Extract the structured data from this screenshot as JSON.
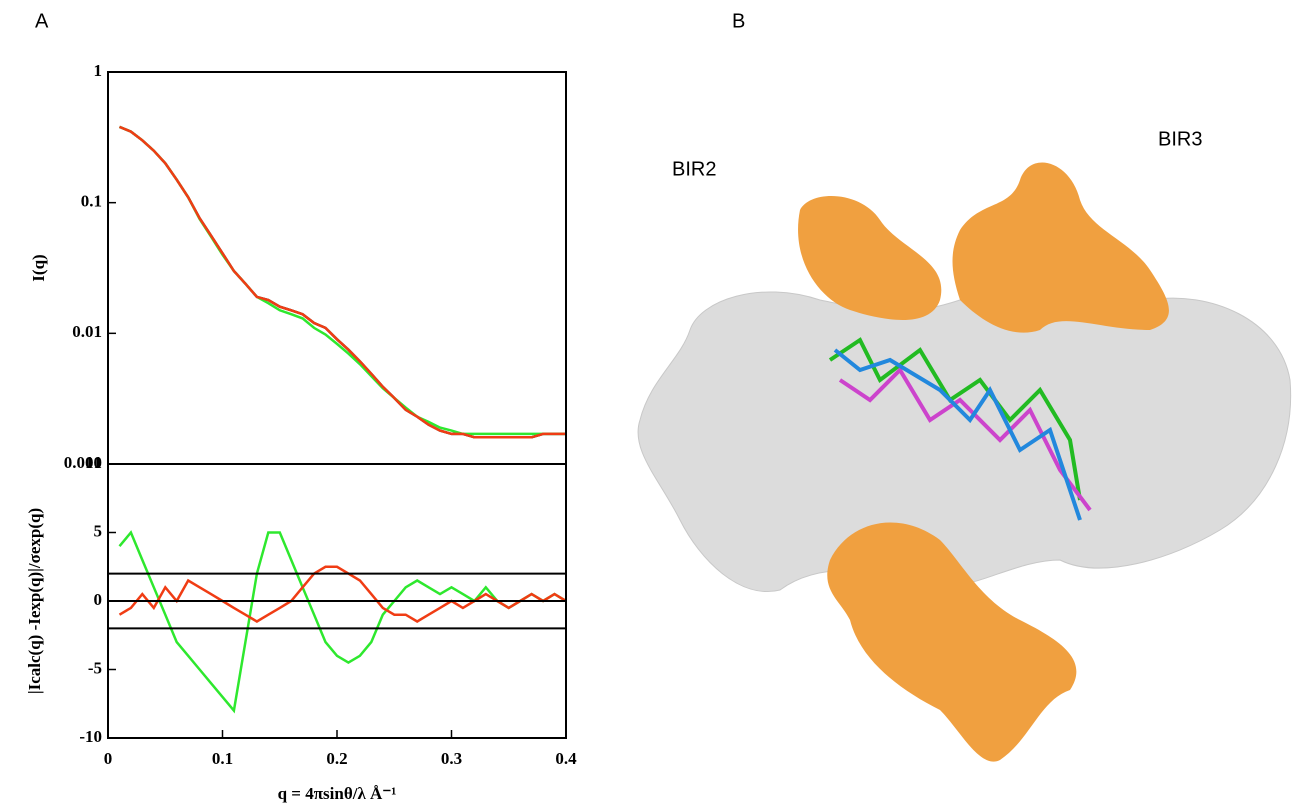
{
  "panel_labels": [
    "A",
    "B"
  ],
  "image_labels": [
    "BIR2",
    "BIR3"
  ],
  "chart_data": [
    {
      "type": "line",
      "log_y": true,
      "ylabel": "I(q)",
      "xlim": [
        0,
        0.4
      ],
      "ylim": [
        0.001,
        1
      ],
      "yticks": [
        0.001,
        0.01,
        0.1,
        1
      ],
      "x": [
        0.01,
        0.02,
        0.03,
        0.04,
        0.05,
        0.06,
        0.07,
        0.08,
        0.09,
        0.1,
        0.11,
        0.12,
        0.13,
        0.14,
        0.15,
        0.16,
        0.17,
        0.18,
        0.19,
        0.2,
        0.21,
        0.22,
        0.23,
        0.24,
        0.25,
        0.26,
        0.27,
        0.28,
        0.29,
        0.3,
        0.31,
        0.32,
        0.33,
        0.34,
        0.35,
        0.36,
        0.37,
        0.38,
        0.39,
        0.4
      ],
      "series": [
        {
          "color": "#000000",
          "values": [
            0.38,
            0.35,
            0.3,
            0.25,
            0.2,
            0.15,
            0.11,
            0.076,
            0.056,
            0.041,
            0.03,
            0.024,
            0.019,
            0.018,
            0.016,
            0.015,
            0.014,
            0.012,
            0.011,
            0.009,
            0.0075,
            0.0061,
            0.0049,
            0.0039,
            0.0032,
            0.0026,
            0.0023,
            0.002,
            0.0018,
            0.0017,
            0.0017,
            0.0016,
            0.0016,
            0.0016,
            0.0016,
            0.0016,
            0.0016,
            0.0017,
            0.0017,
            0.0017
          ]
        },
        {
          "color": "#2ee82e",
          "values": [
            0.38,
            0.35,
            0.3,
            0.25,
            0.2,
            0.15,
            0.11,
            0.075,
            0.055,
            0.04,
            0.03,
            0.024,
            0.019,
            0.017,
            0.015,
            0.014,
            0.013,
            0.011,
            0.0098,
            0.0083,
            0.007,
            0.0058,
            0.0047,
            0.0038,
            0.0032,
            0.0027,
            0.0023,
            0.0021,
            0.0019,
            0.0018,
            0.0017,
            0.0017,
            0.0017,
            0.0017,
            0.0017,
            0.0017,
            0.0017,
            0.0017,
            0.0017,
            0.0017
          ]
        },
        {
          "color": "#f03c14",
          "values": [
            0.38,
            0.35,
            0.3,
            0.25,
            0.2,
            0.15,
            0.11,
            0.076,
            0.056,
            0.041,
            0.03,
            0.024,
            0.019,
            0.018,
            0.016,
            0.015,
            0.014,
            0.012,
            0.011,
            0.009,
            0.0075,
            0.0061,
            0.0049,
            0.0039,
            0.0032,
            0.0026,
            0.0023,
            0.002,
            0.0018,
            0.0017,
            0.0017,
            0.0016,
            0.0016,
            0.0016,
            0.0016,
            0.0016,
            0.0016,
            0.0017,
            0.0017,
            0.0017
          ]
        }
      ]
    },
    {
      "type": "line",
      "log_y": false,
      "ylabel": "|Icalc(q) -Iexp(q)|/σexp(q)",
      "xlabel": "q = 4πsinθ/λ  Å⁻¹",
      "xlim": [
        0,
        0.4
      ],
      "xticks": [
        0,
        0.1,
        0.2,
        0.3,
        0.4
      ],
      "ylim": [
        -10,
        10
      ],
      "yticks": [
        -10,
        -5,
        0,
        5,
        10
      ],
      "hlines": [
        -2,
        0,
        2
      ],
      "x": [
        0.01,
        0.02,
        0.03,
        0.04,
        0.05,
        0.06,
        0.07,
        0.08,
        0.09,
        0.1,
        0.11,
        0.12,
        0.13,
        0.14,
        0.15,
        0.16,
        0.17,
        0.18,
        0.19,
        0.2,
        0.21,
        0.22,
        0.23,
        0.24,
        0.25,
        0.26,
        0.27,
        0.28,
        0.29,
        0.3,
        0.31,
        0.32,
        0.33,
        0.34,
        0.35,
        0.36,
        0.37,
        0.38,
        0.39,
        0.4
      ],
      "series": [
        {
          "color": "#2ee82e",
          "values": [
            4,
            5,
            3,
            1,
            -1,
            -3,
            -4,
            -5,
            -6,
            -7,
            -8,
            -3,
            2,
            5,
            5,
            3,
            1,
            -1,
            -3,
            -4,
            -4.5,
            -4,
            -3,
            -1,
            0,
            1,
            1.5,
            1,
            0.5,
            1,
            0.5,
            0,
            1,
            0,
            -0.5,
            0,
            0.5,
            0,
            0.5,
            0
          ]
        },
        {
          "color": "#f03c14",
          "values": [
            -1,
            -0.5,
            0.5,
            -0.5,
            1,
            0,
            1.5,
            1,
            0.5,
            0,
            -0.5,
            -1,
            -1.5,
            -1,
            -0.5,
            0,
            1,
            2,
            2.5,
            2.5,
            2,
            1.5,
            0.5,
            -0.5,
            -1,
            -1,
            -1.5,
            -1,
            -0.5,
            0,
            -0.5,
            0,
            0.5,
            0,
            -0.5,
            0,
            0.5,
            0,
            0.5,
            0
          ]
        }
      ]
    }
  ]
}
